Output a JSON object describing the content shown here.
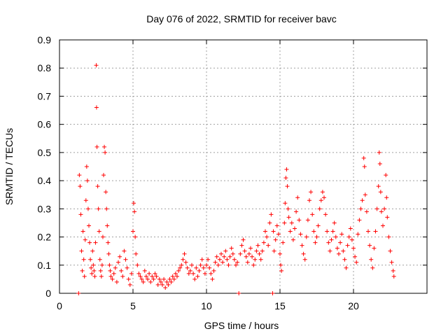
{
  "chart_data": {
    "type": "scatter",
    "title": "Day 076 of 2022, SRMTID for receiver bavc",
    "xlabel": "GPS time / hours",
    "ylabel": "SRMTID / TECUs",
    "xlim": [
      0,
      25
    ],
    "ylim": [
      0,
      0.9
    ],
    "xticks": [
      0,
      5,
      10,
      15,
      20
    ],
    "yticks": [
      0,
      0.1,
      0.2,
      0.3,
      0.4,
      0.5,
      0.6,
      0.7,
      0.8,
      0.9
    ],
    "xtick_labels": [
      "0",
      "5",
      "10",
      "15",
      "20"
    ],
    "ytick_labels": [
      "0",
      "0.1",
      "0.2",
      "0.3",
      "0.4",
      "0.5",
      "0.6",
      "0.7",
      "0.8",
      "0.9"
    ],
    "grid": true,
    "marker": "+",
    "color": "#ff0000",
    "series": [
      {
        "name": "SRMTID",
        "points": [
          [
            1.3,
            0.0
          ],
          [
            1.35,
            0.42
          ],
          [
            1.4,
            0.38
          ],
          [
            1.45,
            0.28
          ],
          [
            1.5,
            0.15
          ],
          [
            1.55,
            0.08
          ],
          [
            1.6,
            0.22
          ],
          [
            1.65,
            0.12
          ],
          [
            1.7,
            0.06
          ],
          [
            1.75,
            0.19
          ],
          [
            1.8,
            0.33
          ],
          [
            1.85,
            0.45
          ],
          [
            1.9,
            0.4
          ],
          [
            1.95,
            0.3
          ],
          [
            2.0,
            0.24
          ],
          [
            2.05,
            0.18
          ],
          [
            2.1,
            0.12
          ],
          [
            2.15,
            0.09
          ],
          [
            2.2,
            0.07
          ],
          [
            2.25,
            0.15
          ],
          [
            2.3,
            0.1
          ],
          [
            2.35,
            0.08
          ],
          [
            2.4,
            0.06
          ],
          [
            2.45,
            0.18
          ],
          [
            2.5,
            0.81
          ],
          [
            2.52,
            0.66
          ],
          [
            2.55,
            0.52
          ],
          [
            2.6,
            0.38
          ],
          [
            2.65,
            0.3
          ],
          [
            2.7,
            0.22
          ],
          [
            2.75,
            0.12
          ],
          [
            2.8,
            0.08
          ],
          [
            2.85,
            0.06
          ],
          [
            2.9,
            0.1
          ],
          [
            2.95,
            0.2
          ],
          [
            3.0,
            0.42
          ],
          [
            3.05,
            0.52
          ],
          [
            3.1,
            0.5
          ],
          [
            3.15,
            0.36
          ],
          [
            3.2,
            0.3
          ],
          [
            3.25,
            0.24
          ],
          [
            3.3,
            0.18
          ],
          [
            3.35,
            0.14
          ],
          [
            3.4,
            0.1
          ],
          [
            3.45,
            0.08
          ],
          [
            3.5,
            0.06
          ],
          [
            3.6,
            0.05
          ],
          [
            3.7,
            0.07
          ],
          [
            3.8,
            0.09
          ],
          [
            3.9,
            0.04
          ],
          [
            4.0,
            0.11
          ],
          [
            4.1,
            0.13
          ],
          [
            4.2,
            0.08
          ],
          [
            4.3,
            0.06
          ],
          [
            4.4,
            0.15
          ],
          [
            4.5,
            0.12
          ],
          [
            4.6,
            0.09
          ],
          [
            4.7,
            0.05
          ],
          [
            4.8,
            0.03
          ],
          [
            4.9,
            0.07
          ],
          [
            5.0,
            0.22
          ],
          [
            5.05,
            0.32
          ],
          [
            5.1,
            0.29
          ],
          [
            5.15,
            0.2
          ],
          [
            5.2,
            0.14
          ],
          [
            5.3,
            0.1
          ],
          [
            5.4,
            0.07
          ],
          [
            5.5,
            0.06
          ],
          [
            5.6,
            0.05
          ],
          [
            5.7,
            0.04
          ],
          [
            5.8,
            0.08
          ],
          [
            5.9,
            0.06
          ],
          [
            6.0,
            0.05
          ],
          [
            6.1,
            0.07
          ],
          [
            6.2,
            0.04
          ],
          [
            6.3,
            0.06
          ],
          [
            6.4,
            0.05
          ],
          [
            6.5,
            0.07
          ],
          [
            6.6,
            0.06
          ],
          [
            6.7,
            0.03
          ],
          [
            6.8,
            0.05
          ],
          [
            6.9,
            0.04
          ],
          [
            7.0,
            0.03
          ],
          [
            7.1,
            0.05
          ],
          [
            7.2,
            0.02
          ],
          [
            7.3,
            0.04
          ],
          [
            7.4,
            0.03
          ],
          [
            7.5,
            0.05
          ],
          [
            7.6,
            0.04
          ],
          [
            7.7,
            0.06
          ],
          [
            7.8,
            0.05
          ],
          [
            7.9,
            0.07
          ],
          [
            8.0,
            0.06
          ],
          [
            8.1,
            0.08
          ],
          [
            8.2,
            0.09
          ],
          [
            8.3,
            0.1
          ],
          [
            8.4,
            0.12
          ],
          [
            8.5,
            0.14
          ],
          [
            8.6,
            0.11
          ],
          [
            8.7,
            0.09
          ],
          [
            8.8,
            0.07
          ],
          [
            8.9,
            0.08
          ],
          [
            9.0,
            0.1
          ],
          [
            9.1,
            0.07
          ],
          [
            9.2,
            0.05
          ],
          [
            9.3,
            0.09
          ],
          [
            9.4,
            0.06
          ],
          [
            9.5,
            0.08
          ],
          [
            9.6,
            0.1
          ],
          [
            9.7,
            0.12
          ],
          [
            9.8,
            0.09
          ],
          [
            9.9,
            0.07
          ],
          [
            10.0,
            0.1
          ],
          [
            10.1,
            0.12
          ],
          [
            10.2,
            0.09
          ],
          [
            10.3,
            0.07
          ],
          [
            10.4,
            0.05
          ],
          [
            10.5,
            0.08
          ],
          [
            10.6,
            0.11
          ],
          [
            10.7,
            0.13
          ],
          [
            10.8,
            0.1
          ],
          [
            10.9,
            0.12
          ],
          [
            11.0,
            0.14
          ],
          [
            11.1,
            0.11
          ],
          [
            11.2,
            0.13
          ],
          [
            11.3,
            0.15
          ],
          [
            11.4,
            0.12
          ],
          [
            11.5,
            0.1
          ],
          [
            11.6,
            0.13
          ],
          [
            11.7,
            0.16
          ],
          [
            11.8,
            0.14
          ],
          [
            11.9,
            0.12
          ],
          [
            12.0,
            0.1
          ],
          [
            12.1,
            0.11
          ],
          [
            12.2,
            0.0
          ],
          [
            12.3,
            0.14
          ],
          [
            12.4,
            0.17
          ],
          [
            12.5,
            0.19
          ],
          [
            12.6,
            0.15
          ],
          [
            12.7,
            0.13
          ],
          [
            12.8,
            0.11
          ],
          [
            12.9,
            0.14
          ],
          [
            13.0,
            0.16
          ],
          [
            13.1,
            0.13
          ],
          [
            13.2,
            0.1
          ],
          [
            13.3,
            0.12
          ],
          [
            13.4,
            0.15
          ],
          [
            13.5,
            0.17
          ],
          [
            13.6,
            0.14
          ],
          [
            13.7,
            0.12
          ],
          [
            13.8,
            0.15
          ],
          [
            13.9,
            0.18
          ],
          [
            14.0,
            0.22
          ],
          [
            14.1,
            0.2
          ],
          [
            14.2,
            0.17
          ],
          [
            14.3,
            0.25
          ],
          [
            14.4,
            0.28
          ],
          [
            14.5,
            0.0
          ],
          [
            14.55,
            0.22
          ],
          [
            14.6,
            0.15
          ],
          [
            14.7,
            0.19
          ],
          [
            14.8,
            0.24
          ],
          [
            14.9,
            0.21
          ],
          [
            15.0,
            0.14
          ],
          [
            15.05,
            0.1
          ],
          [
            15.1,
            0.08
          ],
          [
            15.2,
            0.18
          ],
          [
            15.3,
            0.25
          ],
          [
            15.35,
            0.32
          ],
          [
            15.4,
            0.41
          ],
          [
            15.45,
            0.44
          ],
          [
            15.5,
            0.38
          ],
          [
            15.55,
            0.3
          ],
          [
            15.6,
            0.27
          ],
          [
            15.7,
            0.22
          ],
          [
            15.8,
            0.25
          ],
          [
            15.9,
            0.19
          ],
          [
            16.0,
            0.23
          ],
          [
            16.1,
            0.29
          ],
          [
            16.2,
            0.34
          ],
          [
            16.3,
            0.26
          ],
          [
            16.4,
            0.21
          ],
          [
            16.5,
            0.17
          ],
          [
            16.6,
            0.14
          ],
          [
            16.7,
            0.12
          ],
          [
            16.8,
            0.2
          ],
          [
            16.9,
            0.26
          ],
          [
            17.0,
            0.33
          ],
          [
            17.1,
            0.36
          ],
          [
            17.2,
            0.28
          ],
          [
            17.3,
            0.22
          ],
          [
            17.4,
            0.18
          ],
          [
            17.5,
            0.2
          ],
          [
            17.6,
            0.24
          ],
          [
            17.7,
            0.3
          ],
          [
            17.8,
            0.33
          ],
          [
            17.9,
            0.36
          ],
          [
            18.0,
            0.34
          ],
          [
            18.1,
            0.28
          ],
          [
            18.2,
            0.22
          ],
          [
            18.3,
            0.18
          ],
          [
            18.4,
            0.15
          ],
          [
            18.5,
            0.19
          ],
          [
            18.6,
            0.22
          ],
          [
            18.7,
            0.25
          ],
          [
            18.8,
            0.2
          ],
          [
            18.9,
            0.16
          ],
          [
            19.0,
            0.14
          ],
          [
            19.1,
            0.18
          ],
          [
            19.2,
            0.21
          ],
          [
            19.3,
            0.15
          ],
          [
            19.4,
            0.12
          ],
          [
            19.5,
            0.09
          ],
          [
            19.6,
            0.17
          ],
          [
            19.7,
            0.2
          ],
          [
            19.8,
            0.23
          ],
          [
            19.9,
            0.19
          ],
          [
            20.0,
            0.16
          ],
          [
            20.1,
            0.13
          ],
          [
            20.2,
            0.11
          ],
          [
            20.3,
            0.21
          ],
          [
            20.4,
            0.26
          ],
          [
            20.5,
            0.3
          ],
          [
            20.6,
            0.33
          ],
          [
            20.7,
            0.48
          ],
          [
            20.75,
            0.45
          ],
          [
            20.8,
            0.35
          ],
          [
            20.9,
            0.29
          ],
          [
            21.0,
            0.22
          ],
          [
            21.1,
            0.17
          ],
          [
            21.2,
            0.12
          ],
          [
            21.3,
            0.09
          ],
          [
            21.4,
            0.16
          ],
          [
            21.5,
            0.22
          ],
          [
            21.6,
            0.3
          ],
          [
            21.7,
            0.38
          ],
          [
            21.75,
            0.5
          ],
          [
            21.8,
            0.46
          ],
          [
            21.85,
            0.36
          ],
          [
            21.9,
            0.29
          ],
          [
            22.0,
            0.24
          ],
          [
            22.1,
            0.3
          ],
          [
            22.2,
            0.42
          ],
          [
            22.25,
            0.34
          ],
          [
            22.3,
            0.27
          ],
          [
            22.4,
            0.2
          ],
          [
            22.5,
            0.15
          ],
          [
            22.6,
            0.11
          ],
          [
            22.7,
            0.08
          ],
          [
            22.75,
            0.06
          ]
        ]
      }
    ]
  }
}
